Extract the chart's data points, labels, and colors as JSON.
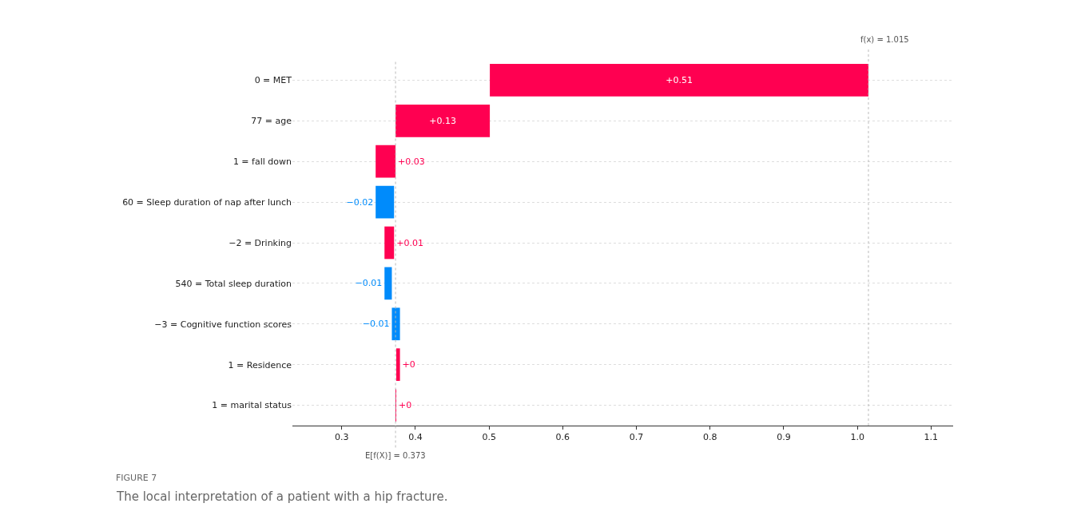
{
  "chart_data": {
    "type": "bar",
    "orientation": "horizontal",
    "categories": [
      "0 = MET",
      "77 = age",
      "1 = fall down",
      "60 = Sleep duration of nap after lunch",
      "−2 = Drinking",
      "540 = Total sleep duration",
      "−3 = Cognitive function scores",
      "1 = Residence",
      "1 = marital status"
    ],
    "base": [
      0.501,
      0.373,
      0.346,
      0.371,
      0.358,
      0.368,
      0.379,
      0.374,
      0.373
    ],
    "values": [
      0.514,
      0.128,
      0.027,
      -0.025,
      0.013,
      -0.01,
      -0.011,
      0.005,
      0.001
    ],
    "colors": [
      "#ff0051",
      "#ff0051",
      "#ff0051",
      "#008bfb",
      "#ff0051",
      "#008bfb",
      "#008bfb",
      "#ff0051",
      "#ff0051"
    ],
    "value_labels": [
      "+0.51",
      "+0.13",
      "+0.03",
      "−0.02",
      "+0.01",
      "−0.01",
      "−0.01",
      "+0",
      "+0"
    ],
    "xlim": [
      0.233,
      1.13
    ],
    "xticks": [
      0.3,
      0.4,
      0.5,
      0.6,
      0.7,
      0.8,
      0.9,
      {
        "value": 1.0,
        "label": "1.0"
      },
      1.1
    ],
    "grid": "y",
    "ref_lines": [
      {
        "axis": "x",
        "value": 0.373,
        "label": "E[f(X)] = 0.373",
        "color": "#bbbbbb",
        "line_style": "dotted"
      },
      {
        "axis": "x",
        "value": 1.015,
        "label": "f(x) = 1.015",
        "color": "#bbbbbb",
        "line_style": "dotted"
      }
    ],
    "annotations": [
      "FIGURE 7",
      "The local interpretation of a patient with a hip fracture."
    ]
  }
}
